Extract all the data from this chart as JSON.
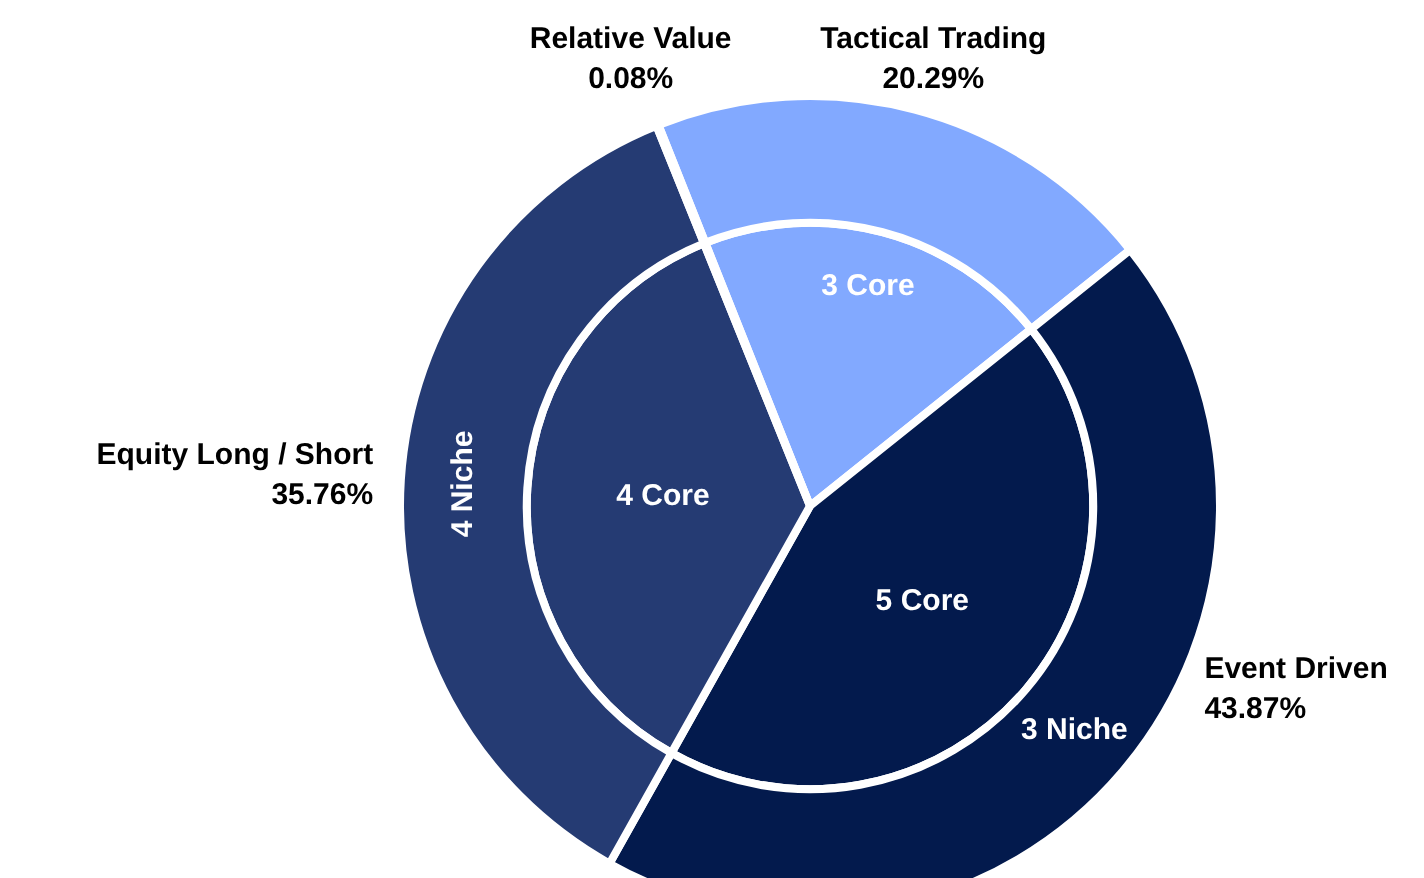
{
  "chart_data": {
    "type": "donut",
    "categories": [
      "Tactical Trading",
      "Event Driven",
      "Equity Long / Short",
      "Relative Value"
    ],
    "value_labels": [
      "20.29%",
      "43.87%",
      "35.76%",
      "0.08%"
    ],
    "colors": [
      "#82a9ff",
      "#031a4d",
      "#253b73",
      "#253b73"
    ],
    "series": [
      {
        "values": [
          20.29,
          43.87,
          35.76,
          0.08
        ]
      },
      {
        "values": [
          20.29,
          43.87,
          35.76,
          0.08
        ]
      }
    ],
    "annotations": [
      {
        "text": "3 Core",
        "x": "Tactical Trading"
      },
      {
        "text": "5 Core",
        "x": "Event Driven"
      },
      {
        "text": "4 Core",
        "x": "Equity Long / Short"
      },
      {
        "text": "3 Niche",
        "x": "Event Driven"
      },
      {
        "text": "4 Niche",
        "x": "Equity Long / Short"
      }
    ]
  }
}
